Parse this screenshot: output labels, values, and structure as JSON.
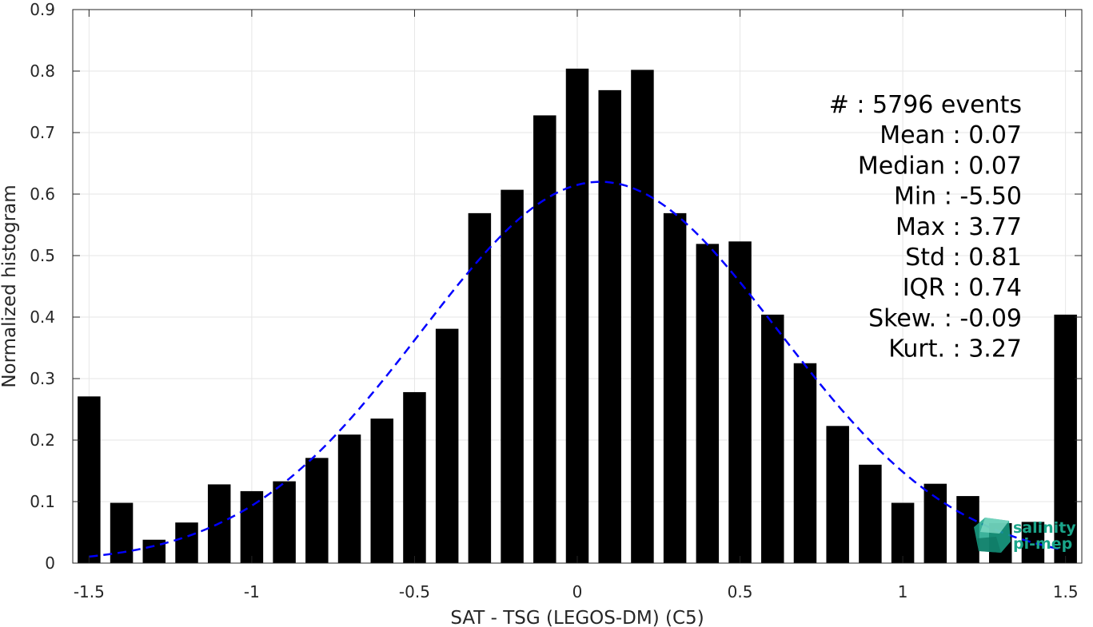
{
  "chart_data": {
    "type": "bar",
    "xlabel": "SAT - TSG (LEGOS-DM) (C5)",
    "ylabel": "Normalized histogram",
    "xlim": [
      -1.55,
      1.55
    ],
    "ylim": [
      0,
      0.9
    ],
    "x_ticks": [
      -1.5,
      -1,
      -0.5,
      0,
      0.5,
      1,
      1.5
    ],
    "x_tick_labels": [
      "-1.5",
      "-1",
      "-0.5",
      "0",
      "0.5",
      "1",
      "1.5"
    ],
    "y_ticks": [
      0,
      0.1,
      0.2,
      0.3,
      0.4,
      0.5,
      0.6,
      0.7,
      0.8,
      0.9
    ],
    "y_tick_labels": [
      "0",
      "0.1",
      "0.2",
      "0.3",
      "0.4",
      "0.5",
      "0.6",
      "0.7",
      "0.8",
      "0.9"
    ],
    "grid": true,
    "bar_width": 0.07,
    "bar_color": "#000000",
    "x": [
      -1.5,
      -1.4,
      -1.3,
      -1.2,
      -1.1,
      -1.0,
      -0.9,
      -0.8,
      -0.7,
      -0.6,
      -0.5,
      -0.4,
      -0.3,
      -0.2,
      -0.1,
      0.0,
      0.1,
      0.2,
      0.3,
      0.4,
      0.5,
      0.6,
      0.7,
      0.8,
      0.9,
      1.0,
      1.1,
      1.2,
      1.3,
      1.4,
      1.5
    ],
    "values": [
      0.271,
      0.098,
      0.038,
      0.066,
      0.128,
      0.117,
      0.133,
      0.171,
      0.209,
      0.235,
      0.278,
      0.381,
      0.569,
      0.607,
      0.728,
      0.804,
      0.769,
      0.802,
      0.569,
      0.519,
      0.523,
      0.404,
      0.325,
      0.223,
      0.16,
      0.098,
      0.129,
      0.109,
      0.065,
      0.067,
      0.404
    ],
    "fit_curve": {
      "type": "gaussian",
      "mean": 0.07,
      "peak": 0.62,
      "std": 0.55,
      "x_range": [
        -1.5,
        1.5
      ],
      "color": "#0000ff",
      "style": "dashed"
    },
    "stats": [
      {
        "label": "#  ",
        "value": "5796 events"
      },
      {
        "label": "Mean ",
        "value": "0.07"
      },
      {
        "label": "Median ",
        "value": "0.07"
      },
      {
        "label": "Min ",
        "value": "-5.50"
      },
      {
        "label": "Max ",
        "value": "3.77"
      },
      {
        "label": "Std ",
        "value": "0.81"
      },
      {
        "label": "IQR ",
        "value": "0.74"
      },
      {
        "label": "Skew. ",
        "value": "-0.09"
      },
      {
        "label": "Kurt. ",
        "value": "3.27"
      }
    ]
  },
  "logo": {
    "line1": "salinity",
    "line2": "pi-mep",
    "color": "#1aa58a"
  }
}
